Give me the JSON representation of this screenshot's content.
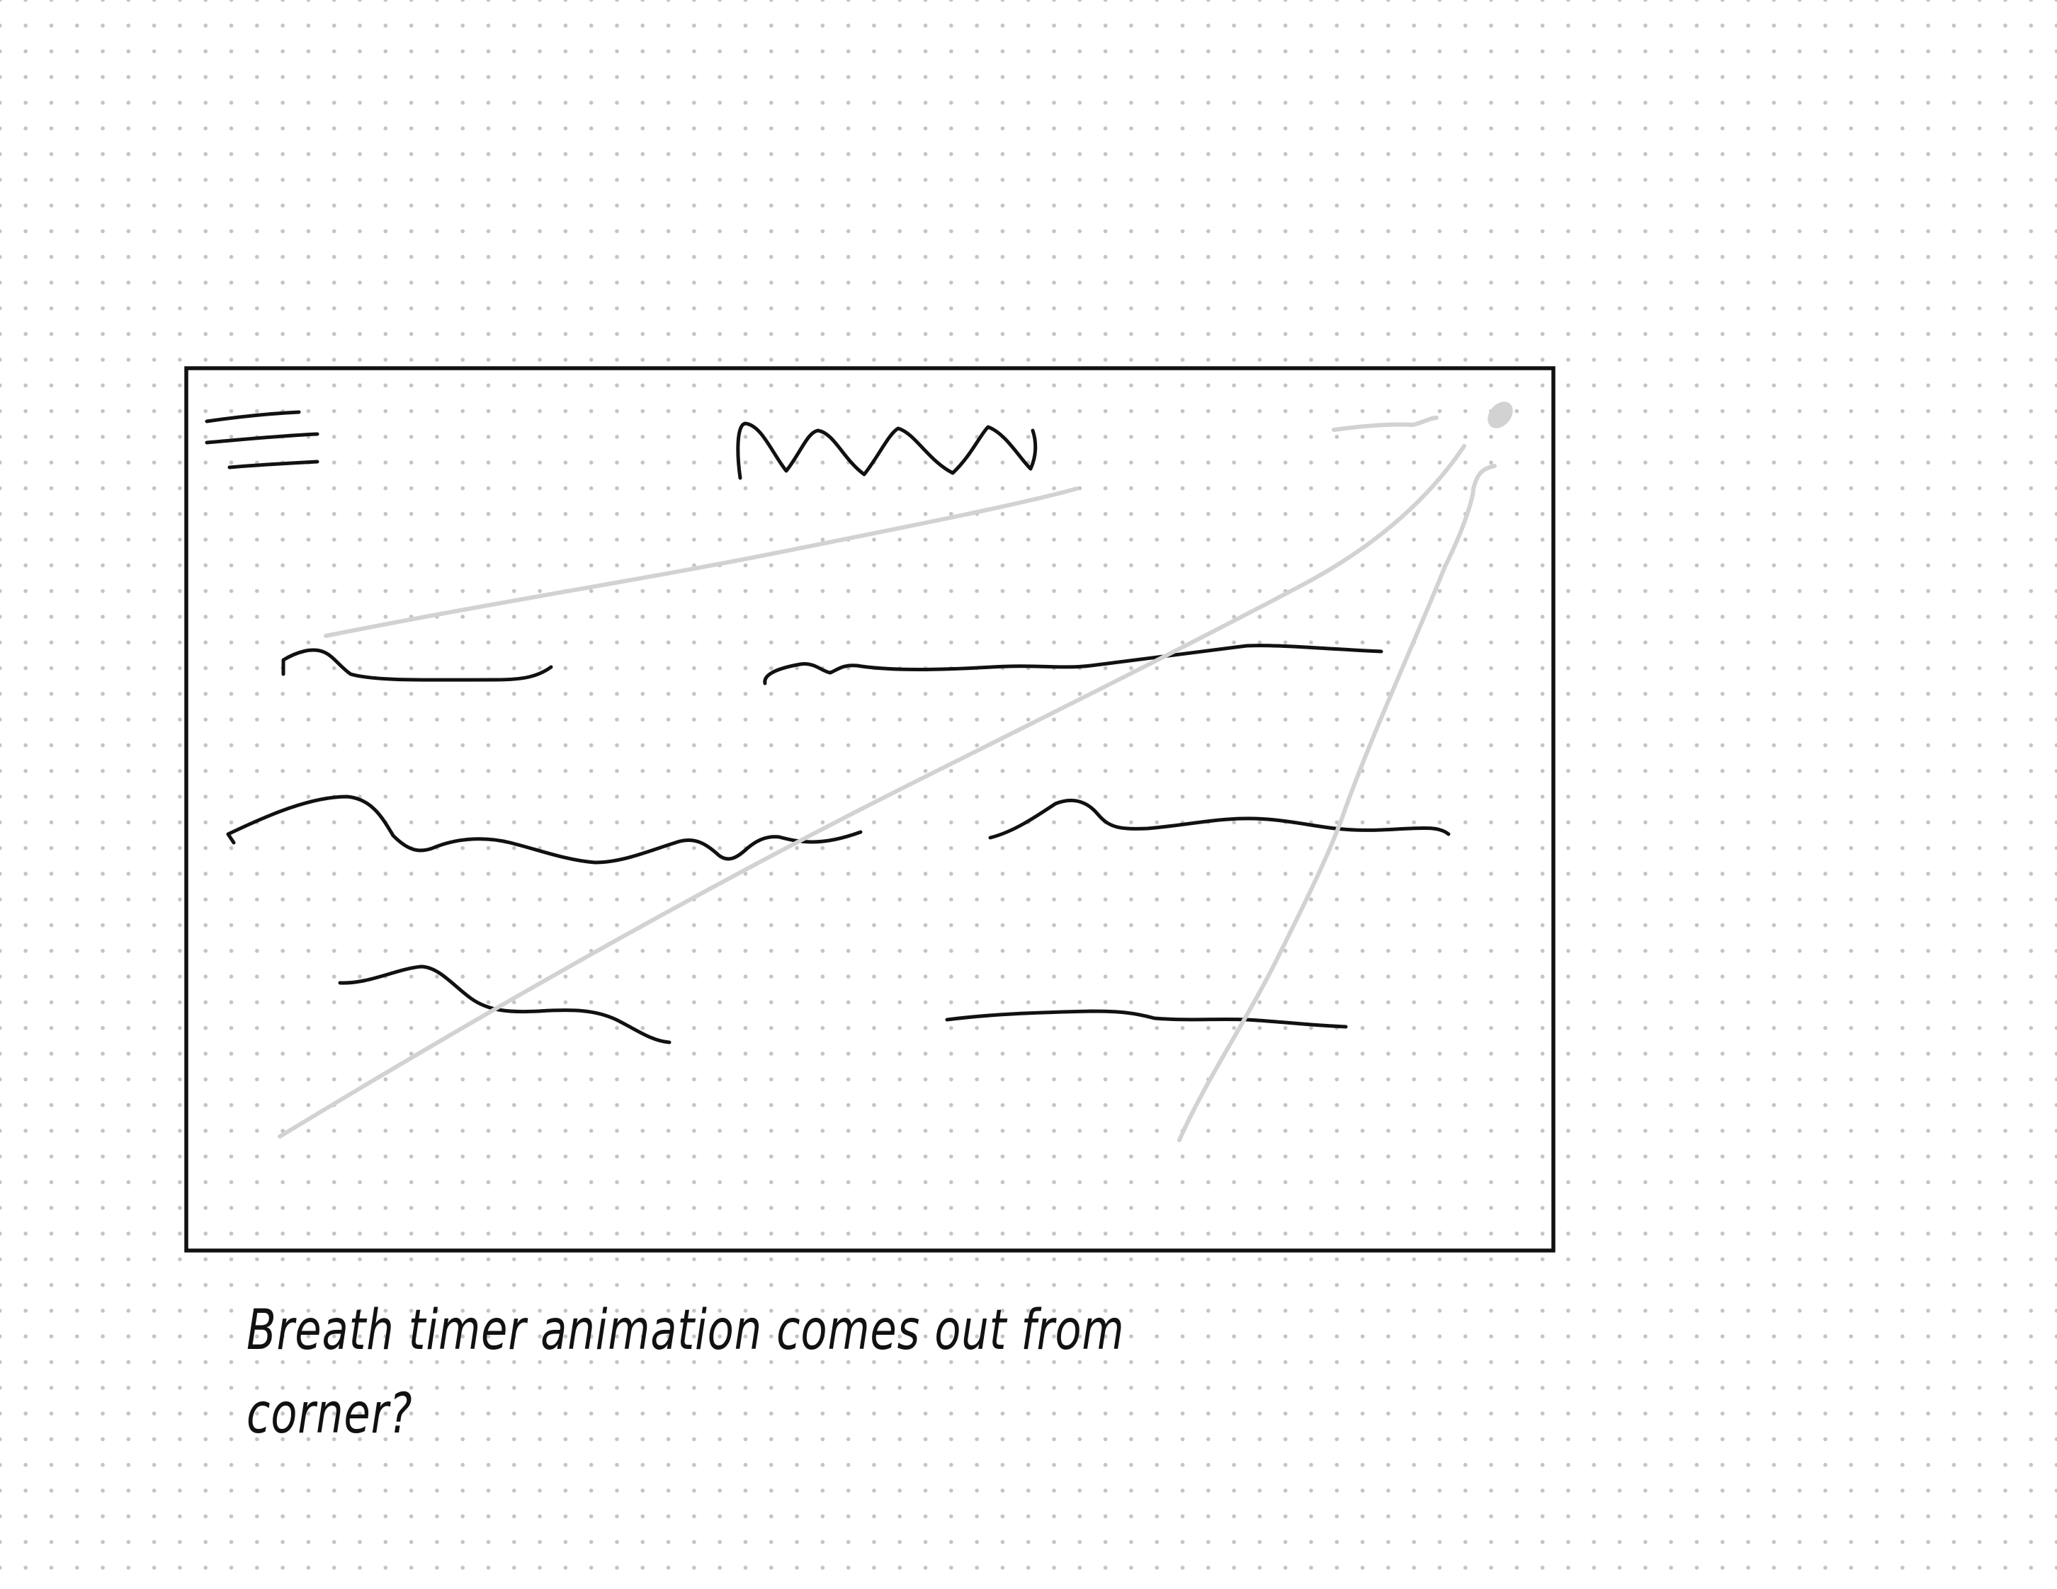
{
  "note": {
    "text": "Breath timer animation comes out from\ncorner?"
  },
  "colors": {
    "ink": "#111111",
    "guide": "#d2d2d2",
    "dot_grid": "#c4c4c4",
    "paper": "#ffffff"
  },
  "icons": [
    "menu-icon",
    "corner-dot-icon"
  ]
}
